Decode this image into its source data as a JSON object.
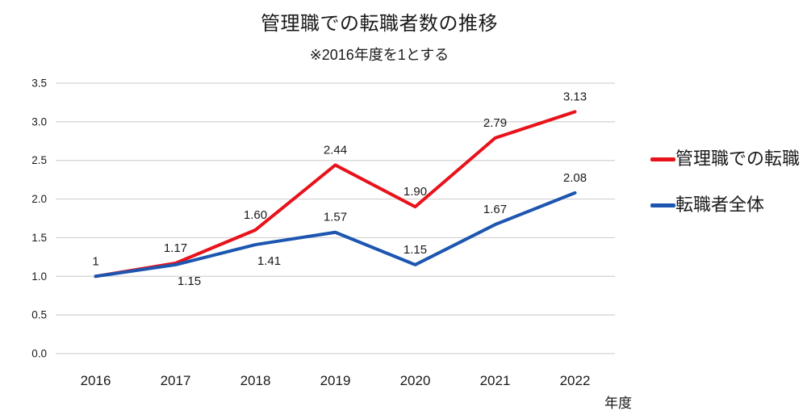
{
  "chart": {
    "title": "管理職での転職者数の推移",
    "subtitle": "※2016年度を1とする",
    "xaxis_title": "年度",
    "text_color": "#1a1a1a",
    "grid_color": "#d2d2d2"
  },
  "chart_data": {
    "type": "line",
    "title": "管理職での転職者数の推移",
    "subtitle": "※2016年度を1とする",
    "xlabel": "年度",
    "ylabel": "",
    "categories": [
      "2016",
      "2017",
      "2018",
      "2019",
      "2020",
      "2021",
      "2022"
    ],
    "series": [
      {
        "name": "管理職での転職",
        "color": "#e8121b",
        "values": [
          1,
          1.17,
          1.6,
          2.44,
          1.9,
          2.79,
          3.13
        ],
        "point_labels": [
          "1",
          "1.17",
          "1.60",
          "2.44",
          "1.90",
          "2.79",
          "3.13"
        ],
        "label_positions": [
          "above",
          "above",
          "above",
          "above",
          "above",
          "above",
          "above"
        ]
      },
      {
        "name": "転職者全体",
        "color": "#1d56b0",
        "values": [
          1,
          1.15,
          1.41,
          1.57,
          1.15,
          1.67,
          2.08
        ],
        "point_labels": [
          "",
          "1.15",
          "1.41",
          "1.57",
          "1.15",
          "1.67",
          "2.08"
        ],
        "label_positions": [
          "above",
          "below-right",
          "below-right",
          "above",
          "above",
          "above",
          "above"
        ]
      }
    ],
    "ylim": [
      0,
      3.5
    ],
    "yticks": [
      "0.0",
      "0.5",
      "1.0",
      "1.5",
      "2.0",
      "2.5",
      "3.0",
      "3.5"
    ],
    "grid": true,
    "legend_position": "right"
  }
}
